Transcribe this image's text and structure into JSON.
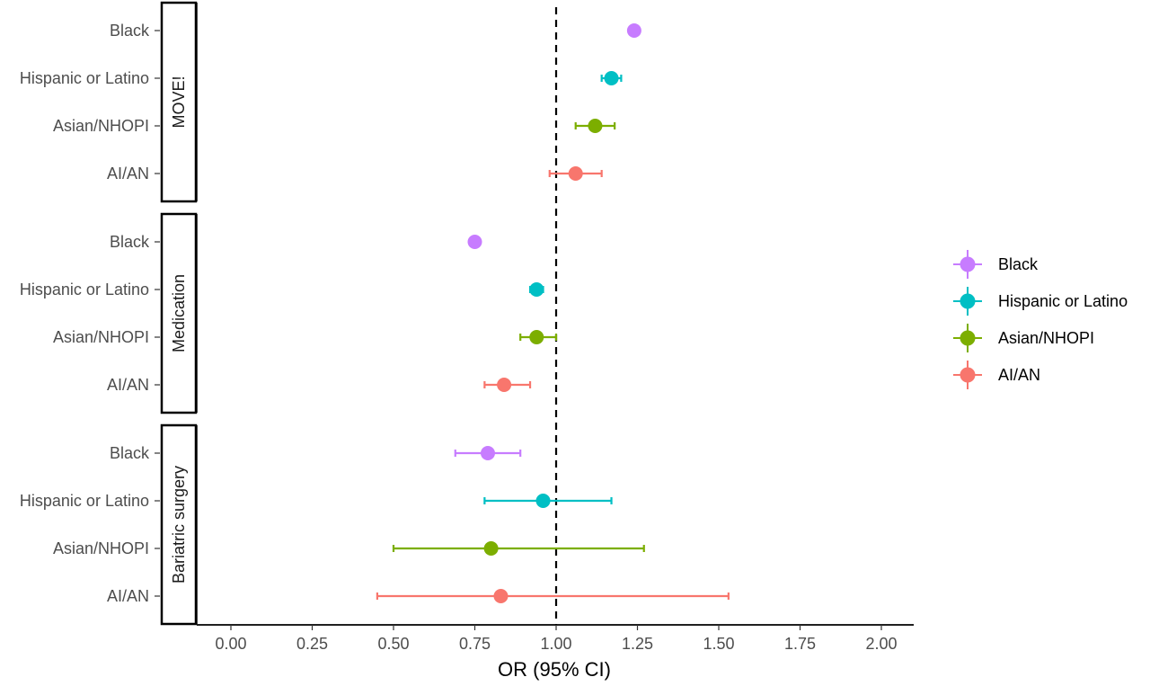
{
  "chart_data": {
    "type": "forest",
    "xlabel": "OR (95% CI)",
    "xlim": [
      -0.1,
      2.1
    ],
    "x_ticks": [
      "0.00",
      "0.25",
      "0.50",
      "0.75",
      "1.00",
      "1.25",
      "1.50",
      "1.75",
      "2.00"
    ],
    "reference_line": 1.0,
    "categories": [
      "Black",
      "Hispanic or Latino",
      "Asian/NHOPI",
      "AI/AN"
    ],
    "legend": {
      "position": "right",
      "entries": [
        "Black",
        "Hispanic or Latino",
        "Asian/NHOPI",
        "AI/AN"
      ]
    },
    "colors": {
      "Black": "#C77CFF",
      "Hispanic or Latino": "#00BFC4",
      "Asian/NHOPI": "#7CAE00",
      "AI/AN": "#F8766D"
    },
    "panels": [
      {
        "label": "MOVE!",
        "points": [
          {
            "group": "Black",
            "or": 1.24,
            "lower": 1.23,
            "upper": 1.25
          },
          {
            "group": "Hispanic or Latino",
            "or": 1.17,
            "lower": 1.14,
            "upper": 1.2
          },
          {
            "group": "Asian/NHOPI",
            "or": 1.12,
            "lower": 1.06,
            "upper": 1.18
          },
          {
            "group": "AI/AN",
            "or": 1.06,
            "lower": 0.98,
            "upper": 1.14
          }
        ]
      },
      {
        "label": "Medication",
        "points": [
          {
            "group": "Black",
            "or": 0.75,
            "lower": 0.74,
            "upper": 0.76
          },
          {
            "group": "Hispanic or Latino",
            "or": 0.94,
            "lower": 0.92,
            "upper": 0.96
          },
          {
            "group": "Asian/NHOPI",
            "or": 0.94,
            "lower": 0.89,
            "upper": 1.0
          },
          {
            "group": "AI/AN",
            "or": 0.84,
            "lower": 0.78,
            "upper": 0.92
          }
        ]
      },
      {
        "label": "Bariatric surgery",
        "points": [
          {
            "group": "Black",
            "or": 0.79,
            "lower": 0.69,
            "upper": 0.89
          },
          {
            "group": "Hispanic or Latino",
            "or": 0.96,
            "lower": 0.78,
            "upper": 1.17
          },
          {
            "group": "Asian/NHOPI",
            "or": 0.8,
            "lower": 0.5,
            "upper": 1.27
          },
          {
            "group": "AI/AN",
            "or": 0.83,
            "lower": 0.45,
            "upper": 1.53
          }
        ]
      }
    ]
  }
}
